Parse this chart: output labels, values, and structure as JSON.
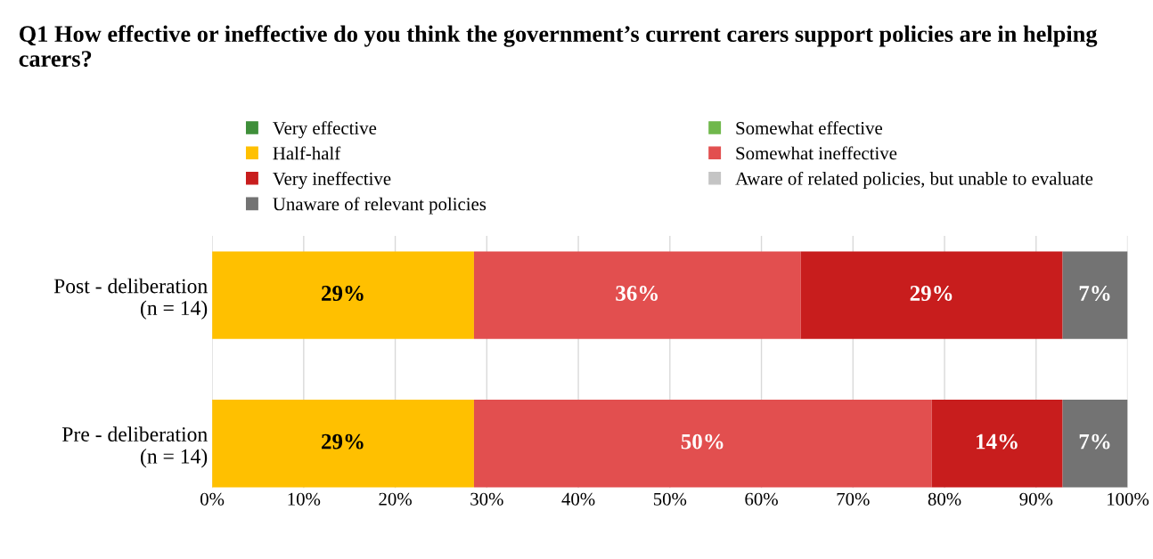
{
  "chart_data": {
    "type": "bar",
    "orientation": "horizontal",
    "stacked": true,
    "title": "Q1 How effective or ineffective do you think the government’s current carers support policies are in helping carers?",
    "categories": [
      "Post - deliberation\n(n = 14)",
      "Pre - deliberation\n(n = 14)"
    ],
    "series": [
      {
        "name": "Very effective",
        "color": "#3f8f3a",
        "values": [
          0,
          0
        ],
        "value_labels": [
          null,
          null
        ]
      },
      {
        "name": "Somewhat effective",
        "color": "#70b84c",
        "values": [
          0,
          0
        ],
        "value_labels": [
          null,
          null
        ]
      },
      {
        "name": "Half-half",
        "color": "#ffc000",
        "values": [
          28.6,
          28.6
        ],
        "value_labels": [
          "29%",
          "29%"
        ]
      },
      {
        "name": "Somewhat ineffective",
        "color": "#e24f4f",
        "values": [
          35.7,
          50.0
        ],
        "value_labels": [
          "36%",
          "50%"
        ]
      },
      {
        "name": "Very ineffective",
        "color": "#c81d1d",
        "values": [
          28.6,
          14.3
        ],
        "value_labels": [
          "29%",
          "14%"
        ]
      },
      {
        "name": "Aware of related policies, but unable to evaluate",
        "color": "#c4c4c4",
        "values": [
          0,
          0
        ],
        "value_labels": [
          null,
          null
        ]
      },
      {
        "name": "Unaware of relevant policies",
        "color": "#737373",
        "values": [
          7.1,
          7.1
        ],
        "value_labels": [
          "7%",
          "7%"
        ]
      }
    ],
    "xlim": [
      0,
      100
    ],
    "xticks": [
      {
        "value": 0,
        "label": "0%"
      },
      {
        "value": 10,
        "label": "10%"
      },
      {
        "value": 20,
        "label": "20%"
      },
      {
        "value": 30,
        "label": "30%"
      },
      {
        "value": 40,
        "label": "40%"
      },
      {
        "value": 50,
        "label": "50%"
      },
      {
        "value": 60,
        "label": "60%"
      },
      {
        "value": 70,
        "label": "70%"
      },
      {
        "value": 80,
        "label": "80%"
      },
      {
        "value": 90,
        "label": "90%"
      },
      {
        "value": 100,
        "label": "100%"
      }
    ],
    "grid": "x",
    "legend": "top"
  }
}
